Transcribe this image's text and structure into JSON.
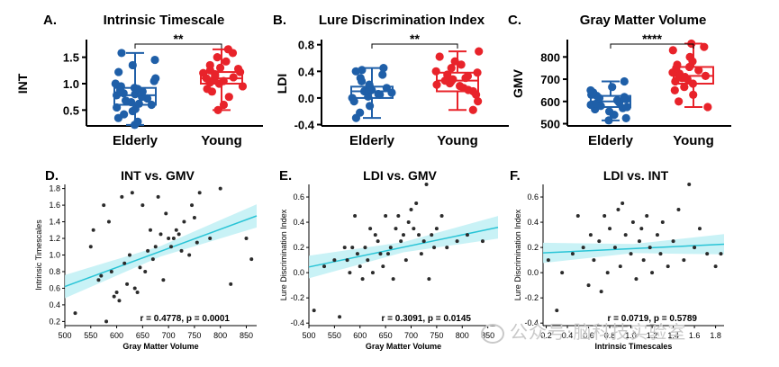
{
  "colors": {
    "elderly": "#1f5fa8",
    "young": "#e8232a",
    "fit": "#29c4d6",
    "band": "#bff0f4",
    "dot": "#2b2b2b",
    "axis": "#000000"
  },
  "watermark": "公众号·脑科技实验室",
  "chart_data": [
    {
      "id": "A",
      "type": "box",
      "letter": "A.",
      "title": "Intrinsic Timescale",
      "ylabel": "INT",
      "ylim": [
        0.2,
        1.8
      ],
      "yticks": [
        0.5,
        1.0,
        1.5
      ],
      "ytick_labels": [
        "0.5",
        "1.0",
        "1.5"
      ],
      "groups": [
        "Elderly",
        "Young"
      ],
      "significance": "**",
      "boxes": [
        {
          "group": "Elderly",
          "min": 0.22,
          "q1": 0.6,
          "median": 0.78,
          "q3": 0.92,
          "max": 1.58
        },
        {
          "group": "Young",
          "min": 0.5,
          "q1": 1.0,
          "median": 1.1,
          "q3": 1.22,
          "max": 1.65
        }
      ],
      "points": [
        [
          0.22,
          0.28,
          0.35,
          0.42,
          0.48,
          0.52,
          0.55,
          0.6,
          0.62,
          0.65,
          0.68,
          0.72,
          0.75,
          0.78,
          0.8,
          0.82,
          0.85,
          0.88,
          0.9,
          0.92,
          0.95,
          1.0,
          1.05,
          1.1,
          1.22,
          1.35,
          1.45,
          1.58
        ],
        [
          0.5,
          0.6,
          0.75,
          0.85,
          0.9,
          0.95,
          1.0,
          1.02,
          1.05,
          1.08,
          1.1,
          1.12,
          1.15,
          1.18,
          1.2,
          1.22,
          1.25,
          1.28,
          1.3,
          1.35,
          1.42,
          1.5,
          1.58,
          1.65
        ]
      ]
    },
    {
      "id": "B",
      "type": "box",
      "letter": "B.",
      "title": "Lure Discrimination Index",
      "ylabel": "LDI",
      "ylim": [
        -0.42,
        0.85
      ],
      "yticks": [
        -0.4,
        0.0,
        0.4,
        0.8
      ],
      "ytick_labels": [
        "-0.4",
        "0.0",
        "0.4",
        "0.8"
      ],
      "groups": [
        "Elderly",
        "Young"
      ],
      "significance": "**",
      "boxes": [
        {
          "group": "Elderly",
          "min": -0.3,
          "q1": 0.0,
          "median": 0.1,
          "q3": 0.17,
          "max": 0.45
        },
        {
          "group": "Young",
          "min": -0.18,
          "q1": 0.1,
          "median": 0.26,
          "q3": 0.38,
          "max": 0.7
        }
      ],
      "points": [
        [
          -0.3,
          -0.22,
          -0.12,
          -0.05,
          0.0,
          0.02,
          0.05,
          0.06,
          0.08,
          0.1,
          0.1,
          0.12,
          0.14,
          0.15,
          0.17,
          0.2,
          0.25,
          0.3,
          0.35,
          0.4,
          0.42,
          0.45
        ],
        [
          -0.18,
          -0.05,
          0.05,
          0.1,
          0.12,
          0.15,
          0.18,
          0.2,
          0.22,
          0.25,
          0.26,
          0.28,
          0.3,
          0.33,
          0.35,
          0.38,
          0.4,
          0.45,
          0.5,
          0.55,
          0.62,
          0.7
        ]
      ]
    },
    {
      "id": "C",
      "type": "box",
      "letter": "C.",
      "title": "Gray Matter Volume",
      "ylabel": "GMV",
      "ylim": [
        490,
        870
      ],
      "yticks": [
        500,
        600,
        700,
        800
      ],
      "ytick_labels": [
        "500",
        "600",
        "700",
        "800"
      ],
      "groups": [
        "Elderly",
        "Young"
      ],
      "significance": "****",
      "boxes": [
        {
          "group": "Elderly",
          "min": 515,
          "q1": 575,
          "median": 600,
          "q3": 625,
          "max": 690
        },
        {
          "group": "Young",
          "min": 575,
          "q1": 680,
          "median": 715,
          "q3": 755,
          "max": 860
        }
      ],
      "points": [
        [
          515,
          525,
          540,
          555,
          565,
          570,
          575,
          580,
          585,
          590,
          595,
          600,
          605,
          610,
          615,
          620,
          625,
          630,
          640,
          650,
          665,
          690
        ],
        [
          575,
          600,
          630,
          650,
          665,
          680,
          690,
          700,
          705,
          710,
          715,
          720,
          725,
          730,
          740,
          750,
          755,
          765,
          780,
          800,
          830,
          845,
          860
        ]
      ]
    },
    {
      "id": "D",
      "type": "scatter",
      "letter": "D.",
      "title": "INT vs. GMV",
      "xlabel": "Gray Matter Volume",
      "ylabel": "Intrinsic Timescales",
      "xlim": [
        500,
        870
      ],
      "ylim": [
        0.15,
        1.85
      ],
      "xticks": [
        500,
        550,
        600,
        650,
        700,
        750,
        800,
        850
      ],
      "yticks": [
        0.2,
        0.4,
        0.6,
        0.8,
        1.0,
        1.2,
        1.4,
        1.6,
        1.8
      ],
      "xtick_labels": [
        "500",
        "550",
        "600",
        "650",
        "700",
        "750",
        "800",
        "850"
      ],
      "ytick_labels": [
        "0.2",
        "0.4",
        "0.6",
        "0.8",
        "1.0",
        "1.2",
        "1.4",
        "1.6",
        "1.8"
      ],
      "annotation": "r = 0.4778, p = 0.0001",
      "fit": {
        "slope": 0.0023,
        "intercept": -0.53,
        "band": 0.14
      },
      "points": [
        [
          520,
          0.3
        ],
        [
          550,
          1.1
        ],
        [
          555,
          1.3
        ],
        [
          565,
          0.7
        ],
        [
          570,
          0.75
        ],
        [
          575,
          1.6
        ],
        [
          580,
          0.2
        ],
        [
          585,
          1.4
        ],
        [
          590,
          0.8
        ],
        [
          595,
          0.5
        ],
        [
          600,
          0.55
        ],
        [
          605,
          0.45
        ],
        [
          610,
          1.7
        ],
        [
          615,
          0.9
        ],
        [
          620,
          0.65
        ],
        [
          625,
          1.0
        ],
        [
          630,
          1.75
        ],
        [
          635,
          0.6
        ],
        [
          640,
          0.55
        ],
        [
          645,
          0.85
        ],
        [
          650,
          1.6
        ],
        [
          655,
          0.8
        ],
        [
          660,
          1.05
        ],
        [
          665,
          1.3
        ],
        [
          670,
          0.95
        ],
        [
          675,
          1.1
        ],
        [
          680,
          1.7
        ],
        [
          685,
          1.25
        ],
        [
          690,
          0.7
        ],
        [
          695,
          1.5
        ],
        [
          700,
          1.2
        ],
        [
          705,
          1.1
        ],
        [
          710,
          1.2
        ],
        [
          715,
          1.3
        ],
        [
          720,
          1.25
        ],
        [
          725,
          1.05
        ],
        [
          730,
          1.4
        ],
        [
          740,
          1.0
        ],
        [
          745,
          1.6
        ],
        [
          750,
          1.45
        ],
        [
          755,
          1.15
        ],
        [
          760,
          1.75
        ],
        [
          780,
          1.2
        ],
        [
          800,
          1.8
        ],
        [
          820,
          0.65
        ],
        [
          850,
          1.2
        ],
        [
          860,
          0.95
        ]
      ]
    },
    {
      "id": "E",
      "type": "scatter",
      "letter": "E.",
      "title": "LDI vs. GMV",
      "xlabel": "Gray Matter Volume",
      "ylabel": "Lure Discrimination Index",
      "xlim": [
        500,
        870
      ],
      "ylim": [
        -0.42,
        0.7
      ],
      "xticks": [
        500,
        550,
        600,
        650,
        700,
        750,
        800,
        850
      ],
      "yticks": [
        -0.4,
        -0.2,
        0.0,
        0.2,
        0.4,
        0.6
      ],
      "xtick_labels": [
        "500",
        "550",
        "600",
        "650",
        "700",
        "750",
        "800",
        "850"
      ],
      "ytick_labels": [
        "-0.4",
        "-0.2",
        "0.0",
        "0.2",
        "0.4",
        "0.6"
      ],
      "annotation": "r = 0.3091, p = 0.0145",
      "fit": {
        "slope": 0.00085,
        "intercept": -0.38,
        "band": 0.09
      },
      "points": [
        [
          510,
          -0.3
        ],
        [
          530,
          0.05
        ],
        [
          550,
          0.1
        ],
        [
          560,
          -0.35
        ],
        [
          570,
          0.2
        ],
        [
          575,
          0.1
        ],
        [
          580,
          0.0
        ],
        [
          585,
          0.2
        ],
        [
          590,
          0.45
        ],
        [
          595,
          0.15
        ],
        [
          600,
          0.05
        ],
        [
          605,
          -0.05
        ],
        [
          610,
          0.2
        ],
        [
          615,
          0.1
        ],
        [
          620,
          0.35
        ],
        [
          625,
          0.0
        ],
        [
          630,
          0.3
        ],
        [
          635,
          0.25
        ],
        [
          640,
          0.15
        ],
        [
          645,
          0.05
        ],
        [
          650,
          0.45
        ],
        [
          655,
          0.15
        ],
        [
          660,
          0.2
        ],
        [
          665,
          -0.05
        ],
        [
          670,
          0.35
        ],
        [
          675,
          0.45
        ],
        [
          680,
          0.25
        ],
        [
          685,
          0.3
        ],
        [
          690,
          0.1
        ],
        [
          695,
          0.4
        ],
        [
          700,
          0.5
        ],
        [
          705,
          0.35
        ],
        [
          710,
          0.55
        ],
        [
          715,
          0.3
        ],
        [
          720,
          0.15
        ],
        [
          725,
          0.25
        ],
        [
          730,
          0.7
        ],
        [
          735,
          -0.05
        ],
        [
          740,
          0.3
        ],
        [
          745,
          0.2
        ],
        [
          750,
          0.35
        ],
        [
          760,
          0.45
        ],
        [
          770,
          0.2
        ],
        [
          790,
          0.25
        ],
        [
          810,
          0.3
        ],
        [
          840,
          0.25
        ]
      ]
    },
    {
      "id": "F",
      "type": "scatter",
      "letter": "F.",
      "title": "LDI vs. INT",
      "xlabel": "Intrinsic Timescales",
      "ylabel": "Lure Discrimination Index",
      "xlim": [
        0.17,
        1.88
      ],
      "ylim": [
        -0.42,
        0.7
      ],
      "xticks": [
        0.2,
        0.4,
        0.6,
        0.8,
        1.0,
        1.2,
        1.4,
        1.6,
        1.8
      ],
      "yticks": [
        -0.4,
        -0.2,
        0.0,
        0.2,
        0.4,
        0.6
      ],
      "xtick_labels": [
        "0.2",
        "0.4",
        "0.6",
        "0.8",
        "1.0",
        "1.2",
        "1.4",
        "1.6",
        "1.8"
      ],
      "ytick_labels": [
        "-0.4",
        "-0.2",
        "0.0",
        "0.2",
        "0.4",
        "0.6"
      ],
      "annotation": "r = 0.0719, p = 0.5789",
      "fit": {
        "slope": 0.04,
        "intercept": 0.15,
        "band": 0.08
      },
      "points": [
        [
          0.22,
          0.1
        ],
        [
          0.3,
          -0.3
        ],
        [
          0.35,
          0.0
        ],
        [
          0.45,
          0.15
        ],
        [
          0.5,
          0.45
        ],
        [
          0.55,
          0.2
        ],
        [
          0.6,
          -0.1
        ],
        [
          0.62,
          0.3
        ],
        [
          0.65,
          0.1
        ],
        [
          0.7,
          0.25
        ],
        [
          0.72,
          -0.15
        ],
        [
          0.75,
          0.45
        ],
        [
          0.78,
          0.0
        ],
        [
          0.8,
          0.35
        ],
        [
          0.85,
          0.2
        ],
        [
          0.88,
          0.5
        ],
        [
          0.9,
          0.05
        ],
        [
          0.92,
          0.55
        ],
        [
          0.95,
          0.3
        ],
        [
          1.0,
          0.15
        ],
        [
          1.02,
          0.4
        ],
        [
          1.05,
          -0.05
        ],
        [
          1.08,
          0.25
        ],
        [
          1.1,
          0.35
        ],
        [
          1.12,
          0.1
        ],
        [
          1.15,
          0.45
        ],
        [
          1.18,
          0.2
        ],
        [
          1.2,
          0.0
        ],
        [
          1.25,
          0.3
        ],
        [
          1.28,
          0.15
        ],
        [
          1.3,
          0.4
        ],
        [
          1.35,
          0.05
        ],
        [
          1.4,
          0.25
        ],
        [
          1.45,
          0.5
        ],
        [
          1.5,
          0.1
        ],
        [
          1.55,
          0.7
        ],
        [
          1.6,
          0.2
        ],
        [
          1.65,
          0.35
        ],
        [
          1.72,
          0.15
        ],
        [
          1.8,
          0.05
        ],
        [
          1.85,
          0.15
        ]
      ]
    }
  ]
}
